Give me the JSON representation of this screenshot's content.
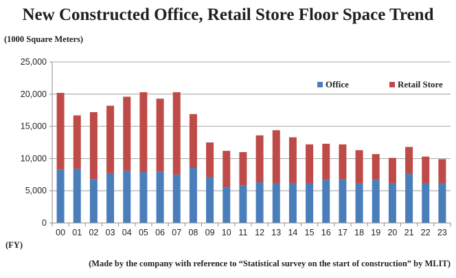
{
  "header": {
    "title": "New Constructed Office, Retail Store Floor Space Trend",
    "unit_label": "(1000 Square Meters)",
    "fy_label": "(FY)",
    "source_note": "(Made by the company with reference to “Statistical survey on the start of construction” by MLIT)"
  },
  "chart_data": {
    "type": "bar",
    "stacked": true,
    "title": "New Constructed Office, Retail Store Floor Space Trend",
    "ylabel": "(1000 Square Meters)",
    "xlabel": "(FY)",
    "categories": [
      "00",
      "01",
      "02",
      "03",
      "04",
      "05",
      "06",
      "07",
      "08",
      "09",
      "10",
      "11",
      "12",
      "13",
      "14",
      "15",
      "16",
      "17",
      "18",
      "19",
      "20",
      "21",
      "22",
      "23"
    ],
    "series": [
      {
        "name": "Office",
        "color": "#4a7ebb",
        "values": [
          8300,
          8400,
          6800,
          7700,
          8100,
          7900,
          8000,
          7500,
          8600,
          7100,
          5600,
          5800,
          6300,
          6200,
          6200,
          6200,
          6700,
          6800,
          6100,
          6700,
          6100,
          7600,
          6200,
          6200
        ]
      },
      {
        "name": "Retail Store",
        "color": "#be4b48",
        "values": [
          11900,
          8300,
          10400,
          10500,
          11500,
          12400,
          11300,
          12800,
          8300,
          5400,
          5600,
          5200,
          7300,
          8200,
          7100,
          6000,
          5600,
          5400,
          5200,
          4000,
          4000,
          4200,
          4100,
          3700
        ]
      }
    ],
    "ylim": [
      0,
      25000
    ],
    "yticks": [
      0,
      5000,
      10000,
      15000,
      20000,
      25000
    ],
    "ytick_labels": [
      "0",
      "5,000",
      "10,000",
      "15,000",
      "20,000",
      "25,000"
    ],
    "grid": true,
    "legend_position": "top-right"
  }
}
